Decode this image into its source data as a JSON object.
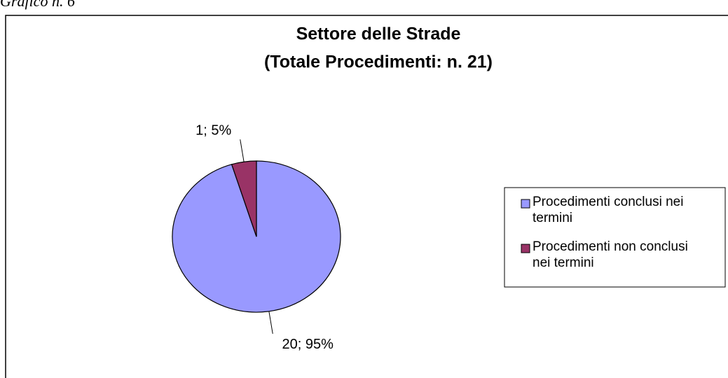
{
  "caption": "Grafico n. 6",
  "chart_data": {
    "type": "pie",
    "title": [
      "Settore delle Strade",
      "(Totale Procedimenti: n. 21)"
    ],
    "categories": [
      "Procedimenti conclusi nei termini",
      "Procedimenti non conclusi nei termini"
    ],
    "values": [
      20,
      1
    ],
    "value_labels": [
      "20; 95%",
      "1; 5%"
    ],
    "colors": [
      "#9999ff",
      "#993366"
    ],
    "legend": "right"
  }
}
